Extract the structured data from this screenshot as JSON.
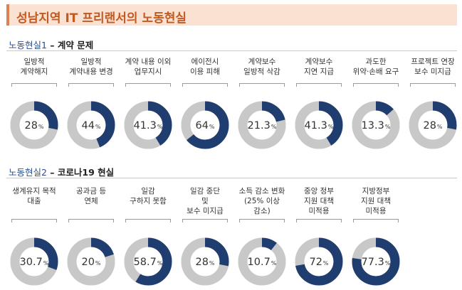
{
  "title": "성남지역 IT 프리랜서의 노동현실",
  "colors": {
    "accent": "#1f3d6e",
    "track": "#c8c8c8",
    "title_bg": "#fbe1d2",
    "title_text": "#c15a20"
  },
  "chart_data": [
    {
      "type": "pie",
      "title": "노동현실1 – 계약 문제",
      "section": {
        "prefix": "노동현실1",
        "dash": " – ",
        "name": "계약 문제"
      },
      "unit": "%",
      "categories": [
        [
          "일방적",
          "계약해지"
        ],
        [
          "일방적",
          "계약내용 변경"
        ],
        [
          "계약 내용 이외",
          "업무지시"
        ],
        [
          "에이전시",
          "이용 피해"
        ],
        [
          "계약보수",
          "일방적 삭감"
        ],
        [
          "계약보수",
          "지연 지급"
        ],
        [
          "과도한",
          "위약·손배 요구"
        ],
        [
          "프로젝트 연장",
          "보수 미지급"
        ]
      ],
      "values": [
        28,
        44,
        41.3,
        64,
        21.3,
        41.3,
        13.3,
        28
      ],
      "value_labels": [
        "28",
        "44",
        "41.3",
        "64",
        "21.3",
        "41.3",
        "13.3",
        "28"
      ]
    },
    {
      "type": "pie",
      "title": "노동현실2 – 코로나19 현실",
      "section": {
        "prefix": "노동현실2",
        "dash": " – ",
        "name": "코로나19 현실"
      },
      "unit": "%",
      "categories": [
        [
          "생계유지 목적",
          "대출"
        ],
        [
          "공과금 등",
          "연체"
        ],
        [
          "일감",
          "구하지 못함"
        ],
        [
          "일감 중단",
          "및",
          "보수 미지급"
        ],
        [
          "소득 감소 변화",
          "(25% 이상",
          "감소)"
        ],
        [
          "중앙 정부",
          "지원 대책",
          "미적용"
        ],
        [
          "지방정부",
          "지원 대책",
          "미적용"
        ]
      ],
      "values": [
        30.7,
        20,
        58.7,
        28,
        10.7,
        72,
        77.3
      ],
      "value_labels": [
        "30.7",
        "20",
        "58.7",
        "28",
        "10.7",
        "72",
        "77.3"
      ]
    }
  ]
}
